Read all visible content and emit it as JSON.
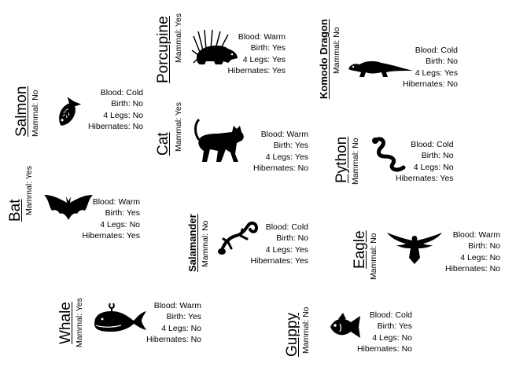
{
  "animals": {
    "salmon": {
      "name": "Salmon",
      "mammal": "Mammal: No",
      "blood": "Blood: Cold",
      "birth": "Birth: No",
      "legs": "4 Legs: No",
      "hibernates": "Hibernates: No",
      "icon": "fish-icon"
    },
    "porcupine": {
      "name": "Porcupine",
      "mammal": "Mammal: Yes",
      "blood": "Blood: Warm",
      "birth": "Birth: Yes",
      "legs": "4 Legs: Yes",
      "hibernates": "Hibernates: Yes",
      "icon": "porcupine-icon"
    },
    "komodo": {
      "name": "Komodo Dragon",
      "mammal": "Mammal: No",
      "blood": "Blood: Cold",
      "birth": "Birth: No",
      "legs": "4 Legs: Yes",
      "hibernates": "Hibernates: No",
      "icon": "lizard-icon"
    },
    "cat": {
      "name": "Cat",
      "mammal": "Mammal: Yes",
      "blood": "Blood: Warm",
      "birth": "Birth: Yes",
      "legs": "4 Legs: Yes",
      "hibernates": "Hibernates: No",
      "icon": "cat-icon"
    },
    "python": {
      "name": "Python",
      "mammal": "Mammal: No",
      "blood": "Blood: Cold",
      "birth": "Birth: No",
      "legs": "4 Legs: No",
      "hibernates": "Hibernates: Yes",
      "icon": "snake-icon"
    },
    "bat": {
      "name": "Bat",
      "mammal": "Mammal: Yes",
      "blood": "Blood: Warm",
      "birth": "Birth: Yes",
      "legs": "4 Legs: No",
      "hibernates": "Hibernates: Yes",
      "icon": "bat-icon"
    },
    "salamander": {
      "name": "Salamander",
      "mammal": "Mammal: No",
      "blood": "Blood: Cold",
      "birth": "Birth: No",
      "legs": "4 Legs: Yes",
      "hibernates": "Hibernates: Yes",
      "icon": "salamander-icon"
    },
    "eagle": {
      "name": "Eagle",
      "mammal": "Mammal: No",
      "blood": "Blood: Warm",
      "birth": "Birth: No",
      "legs": "4 Legs: No",
      "hibernates": "Hibernates: No",
      "icon": "eagle-icon"
    },
    "whale": {
      "name": "Whale",
      "mammal": "Mammal: Yes",
      "blood": "Blood: Warm",
      "birth": "Birth: Yes",
      "legs": "4 Legs: No",
      "hibernates": "Hibernates: No",
      "icon": "whale-icon"
    },
    "guppy": {
      "name": "Guppy",
      "mammal": "Mammal: No",
      "blood": "Blood: Cold",
      "birth": "Birth: Yes",
      "legs": "4 Legs: No",
      "hibernates": "Hibernates: No",
      "icon": "fish-icon"
    }
  }
}
